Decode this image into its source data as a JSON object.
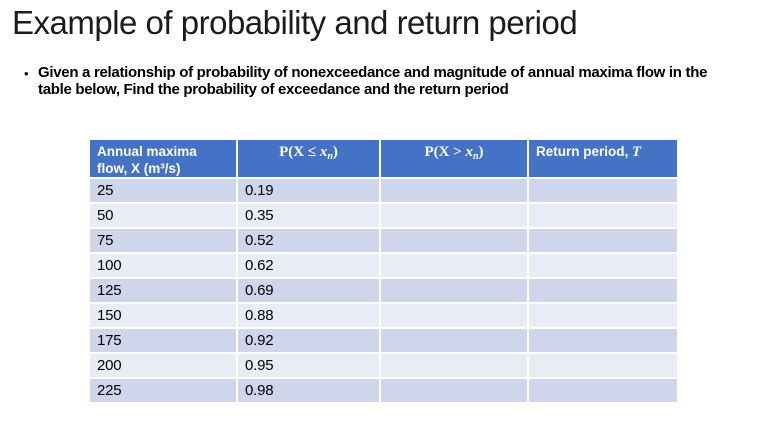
{
  "slide": {
    "title": "Example of probability and return period",
    "bullet_glyph": "•",
    "bullet": "Given a relationship of probability of nonexceedance and magnitude of annual maxima flow in the table below, Find the probability of exceedance and the return period"
  },
  "colors": {
    "table_header_bg": "#4472C4",
    "table_header_text": "#FFFFFF",
    "band_dark": "#CFD5EA",
    "band_light": "#E9EBF5",
    "title_text": "#1C1C1C",
    "body_text": "#000000"
  },
  "table": {
    "headers": {
      "col1_line1": "Annual maxima",
      "col1_line2": "flow, X (m³/s)",
      "col2_pre": "P(X ≤ ",
      "col2_var": "x",
      "col2_sub": "n",
      "col2_post": ")",
      "col3_pre": "P(X > ",
      "col3_var": "x",
      "col3_sub": "n",
      "col3_post": ")",
      "col4_pre": "Return period, ",
      "col4_var": "T"
    },
    "rows": [
      {
        "flow": "25",
        "p_le": "0.19",
        "p_gt": "",
        "t": ""
      },
      {
        "flow": "50",
        "p_le": "0.35",
        "p_gt": "",
        "t": ""
      },
      {
        "flow": "75",
        "p_le": "0.52",
        "p_gt": "",
        "t": ""
      },
      {
        "flow": "100",
        "p_le": "0.62",
        "p_gt": "",
        "t": ""
      },
      {
        "flow": "125",
        "p_le": "0.69",
        "p_gt": "",
        "t": ""
      },
      {
        "flow": "150",
        "p_le": "0.88",
        "p_gt": "",
        "t": ""
      },
      {
        "flow": "175",
        "p_le": "0.92",
        "p_gt": "",
        "t": ""
      },
      {
        "flow": "200",
        "p_le": "0.95",
        "p_gt": "",
        "t": ""
      },
      {
        "flow": "225",
        "p_le": "0.98",
        "p_gt": "",
        "t": ""
      }
    ]
  }
}
